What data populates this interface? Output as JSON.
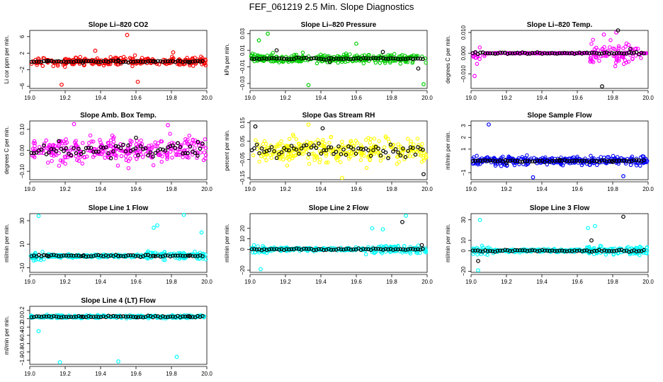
{
  "title": "FEF_061219  2.5 Min. Slope Diagnostics",
  "chart_data": [
    {
      "type": "scatter",
      "title": "Slope Li–820 CO2",
      "ylabel": "Li cor ppm per min.",
      "xlim": [
        19.0,
        20.0
      ],
      "ylim": [
        -6.5,
        7.5
      ],
      "xticks": [
        "19.0",
        "19.2",
        "19.4",
        "19.6",
        "19.8",
        "20.0"
      ],
      "yticks": [
        {
          "v": -6,
          "label": "−6"
        },
        {
          "v": -2,
          "label": "−2"
        },
        {
          "v": 2,
          "label": "2"
        },
        {
          "v": 6,
          "label": "6"
        }
      ],
      "color": "#ff0000",
      "seed": 11,
      "series": [
        {
          "color": "#ff0000",
          "x": [
            19.18,
            19.55,
            19.61,
            19.37,
            19.81
          ],
          "y": [
            -5.6,
            6.4,
            -4.9,
            2.6,
            2.2
          ]
        },
        {
          "color": "#000000",
          "x": [
            19.1,
            19.3,
            19.5,
            19.7,
            19.9
          ],
          "y": [
            0.2,
            -0.3,
            0.3,
            0.1,
            -0.2
          ]
        }
      ]
    },
    {
      "type": "scatter",
      "title": "Slope Li–820 Pressure",
      "ylabel": "kPa per min.",
      "xlim": [
        19.0,
        20.0
      ],
      "ylim": [
        -0.036,
        0.034
      ],
      "xticks": [
        "19.0",
        "19.2",
        "19.4",
        "19.6",
        "19.8",
        "20.0"
      ],
      "yticks": [
        {
          "v": -0.03,
          "label": "−0.03"
        },
        {
          "v": -0.01,
          "label": "−0.01"
        },
        {
          "v": 0.01,
          "label": "0.01"
        },
        {
          "v": 0.03,
          "label": "0.03"
        }
      ],
      "color": "#00cc00",
      "seed": 23,
      "series": [
        {
          "color": "#00cc00",
          "x": [
            19.1,
            19.33,
            19.98,
            19.05,
            19.6
          ],
          "y": [
            0.03,
            -0.032,
            -0.031,
            0.022,
            0.018
          ]
        },
        {
          "color": "#000000",
          "x": [
            19.15,
            19.45,
            19.75,
            19.95
          ],
          "y": [
            0.01,
            -0.004,
            0.008,
            -0.012
          ]
        }
      ]
    },
    {
      "type": "scatter",
      "title": "Slope Li–820 Temp.",
      "ylabel": "degrees C per min.",
      "xlim": [
        19.0,
        20.0
      ],
      "ylim": [
        -0.017,
        0.011
      ],
      "xticks": [
        "19.0",
        "19.2",
        "19.4",
        "19.6",
        "19.8",
        "20.0"
      ],
      "yticks": [
        {
          "v": -0.01,
          "label": "−0.010"
        },
        {
          "v": 0.0,
          "label": "0.000"
        },
        {
          "v": 0.01,
          "label": "0.010"
        }
      ],
      "color": "#ff00ff",
      "seed": 37,
      "series": [
        {
          "color": "#ff00ff",
          "x": [
            19.75,
            19.82,
            19.02
          ],
          "y": [
            0.009,
            0.01,
            -0.011
          ]
        },
        {
          "color": "#000000",
          "x": [
            19.74,
            19.83,
            19.9
          ],
          "y": [
            -0.016,
            0.011,
            0.002
          ]
        }
      ]
    },
    {
      "type": "scatter",
      "title": "Slope Amb. Box Temp.",
      "ylabel": "degrees C per min.",
      "xlim": [
        19.0,
        20.0
      ],
      "ylim": [
        -0.14,
        0.14
      ],
      "xticks": [
        "19.0",
        "19.2",
        "19.4",
        "19.6",
        "19.8",
        "20.0"
      ],
      "yticks": [
        {
          "v": -0.1,
          "label": "−0.10"
        },
        {
          "v": 0.0,
          "label": "0.00"
        },
        {
          "v": 0.1,
          "label": "0.10"
        }
      ],
      "color": "#ff00ff",
      "seed": 41,
      "series": [
        {
          "color": "#ff00ff",
          "x": [
            19.78,
            19.25
          ],
          "y": [
            0.12,
            0.125
          ]
        },
        {
          "color": "#000000",
          "x": [
            19.6,
            19.95
          ],
          "y": [
            0.06,
            0.04
          ]
        }
      ]
    },
    {
      "type": "scatter",
      "title": "Slope Gas Stream RH",
      "ylabel": "percent per min.",
      "xlim": [
        19.0,
        20.0
      ],
      "ylim": [
        -0.16,
        0.16
      ],
      "xticks": [
        "19.0",
        "19.2",
        "19.4",
        "19.6",
        "19.8",
        "20.0"
      ],
      "yticks": [
        {
          "v": -0.15,
          "label": "−0.15"
        },
        {
          "v": -0.05,
          "label": "−0.05"
        },
        {
          "v": 0.05,
          "label": "0.05"
        },
        {
          "v": 0.15,
          "label": "0.15"
        }
      ],
      "color": "#ffff00",
      "seed": 53,
      "series": [
        {
          "color": "#ffff00",
          "x": [
            19.52,
            19.33
          ],
          "y": [
            -0.15,
            0.14
          ]
        },
        {
          "color": "#000000",
          "x": [
            19.03,
            19.98,
            19.41
          ],
          "y": [
            0.13,
            -0.13,
            0.12
          ]
        }
      ]
    },
    {
      "type": "scatter",
      "title": "Slope Sample Flow",
      "ylabel": "ml/min per min.",
      "xlim": [
        19.0,
        20.0
      ],
      "ylim": [
        -1.6,
        3.4
      ],
      "xticks": [
        "19.0",
        "19.2",
        "19.4",
        "19.6",
        "19.8",
        "20.0"
      ],
      "yticks": [
        {
          "v": -1,
          "label": "−1"
        },
        {
          "v": 1,
          "label": "1"
        },
        {
          "v": 2,
          "label": "2"
        },
        {
          "v": 3,
          "label": "3"
        }
      ],
      "color": "#0000ff",
      "seed": 61,
      "series": [
        {
          "color": "#0000ff",
          "x": [
            19.1,
            19.35,
            19.86
          ],
          "y": [
            3.1,
            -1.4,
            -1.3
          ]
        },
        {
          "color": "#000000",
          "x": [
            19.2,
            19.5,
            19.8
          ],
          "y": [
            -0.2,
            0.1,
            -0.1
          ]
        }
      ]
    },
    {
      "type": "scatter",
      "title": "Slope Line 1 Flow",
      "ylabel": "ml/min per min.",
      "xlim": [
        19.0,
        20.0
      ],
      "ylim": [
        -14,
        36
      ],
      "xticks": [
        "19.0",
        "19.2",
        "19.4",
        "19.6",
        "19.8",
        "20.0"
      ],
      "yticks": [
        {
          "v": -10,
          "label": "−10"
        },
        {
          "v": 10,
          "label": "10"
        },
        {
          "v": 30,
          "label": "30"
        }
      ],
      "color": "#00ffff",
      "seed": 71,
      "series": [
        {
          "color": "#00ffff",
          "x": [
            19.05,
            19.87,
            19.7,
            19.72,
            19.97
          ],
          "y": [
            34,
            35,
            24,
            26,
            20
          ]
        },
        {
          "color": "#000000",
          "x": [
            19.1,
            19.3,
            19.5,
            19.7,
            19.9
          ],
          "y": [
            0,
            0,
            0,
            0,
            0
          ]
        }
      ]
    },
    {
      "type": "scatter",
      "title": "Slope Line 2 Flow",
      "ylabel": "ml/min per min.",
      "xlim": [
        19.0,
        20.0
      ],
      "ylim": [
        -22,
        34
      ],
      "xticks": [
        "19.0",
        "19.2",
        "19.4",
        "19.6",
        "19.8",
        "20.0"
      ],
      "yticks": [
        {
          "v": -20,
          "label": "−20"
        },
        {
          "v": 0,
          "label": "0"
        },
        {
          "v": 10,
          "label": "10"
        },
        {
          "v": 20,
          "label": "20"
        }
      ],
      "color": "#00ffff",
      "seed": 83,
      "series": [
        {
          "color": "#00ffff",
          "x": [
            19.06,
            19.88,
            19.69,
            19.75
          ],
          "y": [
            -19,
            32,
            20,
            19
          ]
        },
        {
          "color": "#000000",
          "x": [
            19.86,
            19.97
          ],
          "y": [
            26,
            4
          ]
        }
      ]
    },
    {
      "type": "scatter",
      "title": "Slope Line 3 Flow",
      "ylabel": "ml/min per min.",
      "xlim": [
        19.0,
        20.0
      ],
      "ylim": [
        -21,
        36
      ],
      "xticks": [
        "19.0",
        "19.2",
        "19.4",
        "19.6",
        "19.8",
        "20.0"
      ],
      "yticks": [
        {
          "v": -20,
          "label": "−20"
        },
        {
          "v": 0,
          "label": "0"
        },
        {
          "v": 10,
          "label": "10"
        },
        {
          "v": 30,
          "label": "30"
        }
      ],
      "color": "#00ffff",
      "seed": 97,
      "series": [
        {
          "color": "#00ffff",
          "x": [
            19.04,
            19.05,
            19.7,
            19.66
          ],
          "y": [
            -19,
            30,
            24,
            22
          ]
        },
        {
          "color": "#000000",
          "x": [
            19.86,
            19.04,
            19.68
          ],
          "y": [
            33,
            -10,
            10
          ]
        }
      ]
    },
    {
      "type": "scatter",
      "title": "Slope Line 4 (LT) Flow",
      "ylabel": "ml/min per min.",
      "xlim": [
        19.0,
        20.0
      ],
      "ylim": [
        -1.1,
        0.3
      ],
      "xticks": [
        "19.0",
        "19.2",
        "19.4",
        "19.6",
        "19.8",
        "20.0"
      ],
      "yticks": [
        {
          "v": -1.0,
          "label": "−1.0"
        },
        {
          "v": -0.8,
          "label": "−0.8"
        },
        {
          "v": -0.6,
          "label": "−0.6"
        },
        {
          "v": -0.4,
          "label": "−0.4"
        },
        {
          "v": -0.2,
          "label": "−0.2"
        },
        {
          "v": 0.0,
          "label": "0.0"
        },
        {
          "v": 0.2,
          "label": "0.2"
        }
      ],
      "color": "#00ffff",
      "seed": 101,
      "series": [
        {
          "color": "#00ffff",
          "x": [
            19.17,
            19.5,
            19.83,
            19.05
          ],
          "y": [
            -1.05,
            -1.03,
            -0.92,
            -0.3
          ]
        },
        {
          "color": "#000000",
          "x": [
            19.3,
            19.6,
            19.9
          ],
          "y": [
            0.05,
            0.04,
            0.06
          ]
        }
      ]
    }
  ]
}
